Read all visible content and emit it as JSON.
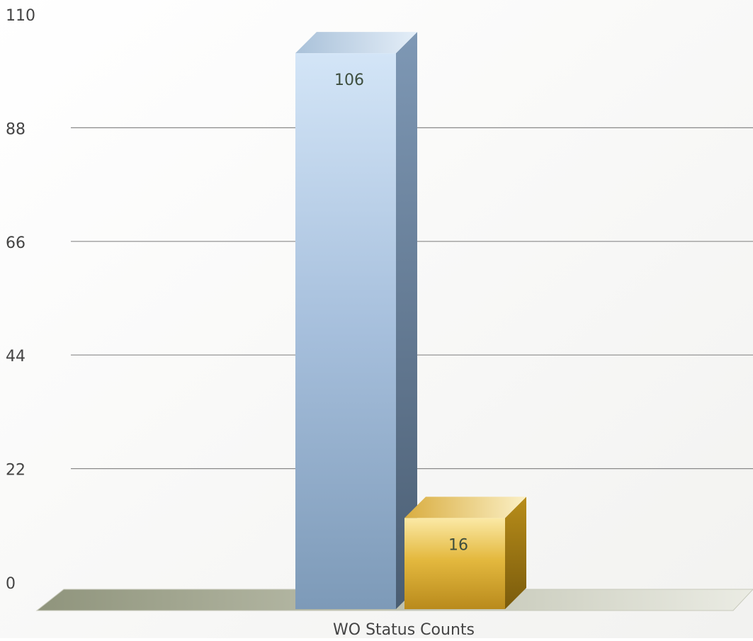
{
  "colors": {
    "series_primary": "#9db7d6",
    "series_secondary": "#e0b23a",
    "gridline": "#8a8a8a",
    "floor": "#a7ab98",
    "label_text": "#444444",
    "value_text": "#3e4e3e"
  },
  "chart_data": {
    "type": "bar",
    "style": "3d",
    "title": "",
    "xlabel": "",
    "ylabel": "",
    "categories": [
      "WO Status Counts"
    ],
    "series": [
      {
        "values": [
          106
        ],
        "color": "#9db7d6"
      },
      {
        "values": [
          16
        ],
        "color": "#e0b23a"
      }
    ],
    "ylim": [
      0,
      110
    ],
    "yticks": [
      0,
      22,
      44,
      66,
      88,
      110
    ],
    "ytick_labels": [
      "0",
      "22",
      "44",
      "66",
      "88",
      "110"
    ],
    "data_labels": [
      "106",
      "16"
    ],
    "grid": true,
    "legend": "none"
  }
}
